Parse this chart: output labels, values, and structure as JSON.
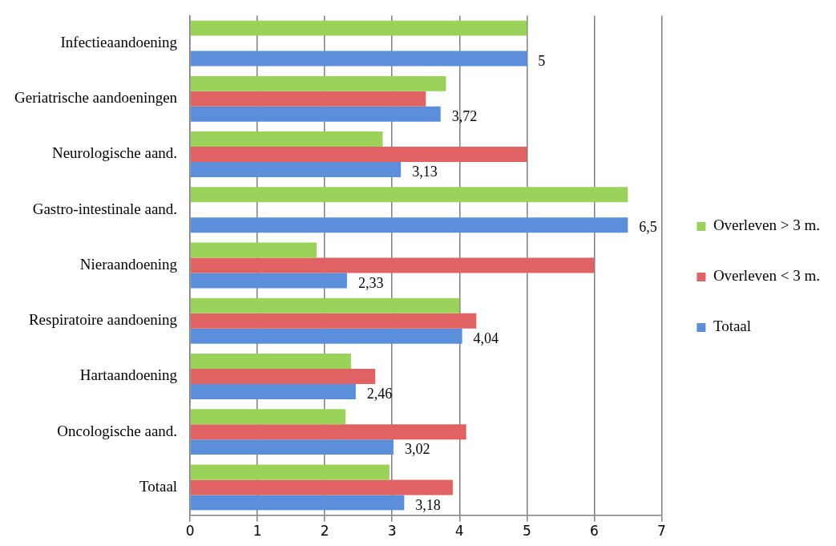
{
  "chart_data": {
    "type": "bar",
    "orientation": "horizontal",
    "categories": [
      "Infectieaandoening",
      "Geriatrische aandoeningen",
      "Neurologische aand.",
      "Gastro-intestinale aand.",
      "Nieraandoening",
      "Respiratoire aandoening",
      "Hartaandoening",
      "Oncologische aand.",
      "Totaal"
    ],
    "series": [
      {
        "name": "Overleven > 3 m.",
        "color": "#9bd25a",
        "values": [
          5.0,
          3.8,
          2.86,
          6.5,
          1.88,
          4.0,
          2.39,
          2.31,
          2.96
        ]
      },
      {
        "name": "Overleven < 3 m.",
        "color": "#e06262",
        "values": [
          null,
          3.5,
          5.0,
          null,
          6.0,
          4.25,
          2.75,
          4.1,
          3.9
        ]
      },
      {
        "name": "Totaal",
        "color": "#5b8fdc",
        "values": [
          5,
          3.72,
          3.13,
          6.5,
          2.33,
          4.04,
          2.46,
          3.02,
          3.18
        ],
        "value_labels": [
          "5",
          "3,72",
          "3,13",
          "6,5",
          "2,33",
          "4,04",
          "2,46",
          "3,02",
          "3,18"
        ]
      }
    ],
    "xlim": [
      0,
      7
    ],
    "xticks": [
      0,
      1,
      2,
      3,
      4,
      5,
      6,
      7
    ],
    "grid": "x",
    "legend": "right"
  }
}
